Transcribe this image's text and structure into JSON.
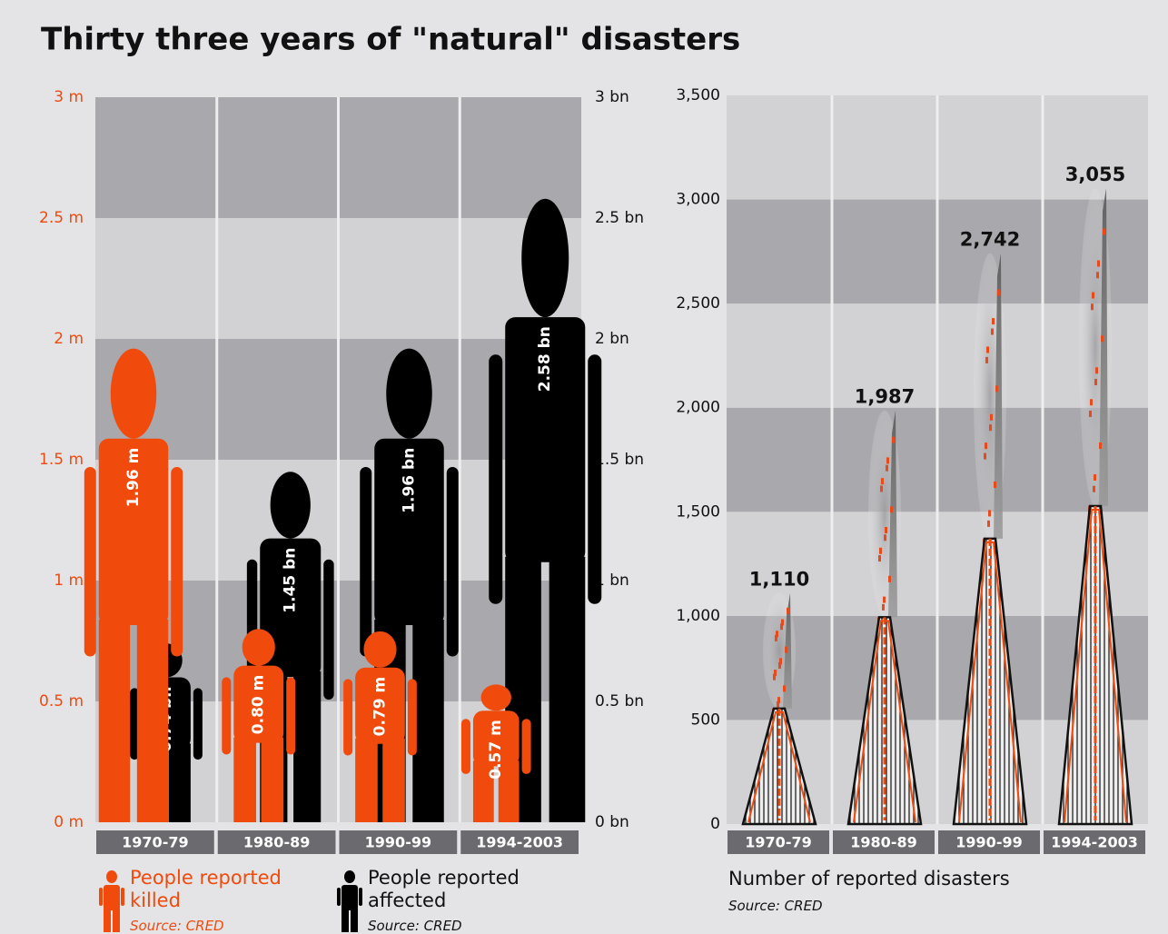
{
  "title": "Thirty three years of \"natural\" disasters",
  "chart_data": [
    {
      "type": "pictogram",
      "categories": [
        "1970-79",
        "1980-89",
        "1990-99",
        "1994-2003"
      ],
      "series": [
        {
          "name": "People reported killed",
          "color": "#f04a0c",
          "values": [
            1.96,
            0.8,
            0.79,
            0.57
          ],
          "value_labels": [
            "1.96 m",
            "0.80 m",
            "0.79 m",
            "0.57 m"
          ],
          "source": "Source: CRED"
        },
        {
          "name": "People reported affected",
          "color": "#000000",
          "values": [
            0.74,
            1.45,
            1.96,
            2.58
          ],
          "value_labels": [
            "0.74 bn",
            "1.45 bn",
            "1.96 bn",
            "2.58 bn"
          ],
          "axis": "y2",
          "source": "Source: CRED"
        }
      ],
      "ylim": [
        0,
        3
      ],
      "yticks": [
        {
          "value": 0,
          "label": "0 m"
        },
        {
          "value": 0.5,
          "label": "0.5 m"
        },
        {
          "value": 1,
          "label": "1 m"
        },
        {
          "value": 1.5,
          "label": "1.5 m"
        },
        {
          "value": 2,
          "label": "2 m"
        },
        {
          "value": 2.5,
          "label": "2.5 m"
        },
        {
          "value": 3,
          "label": "3 m"
        }
      ],
      "y2lim": [
        0,
        3
      ],
      "y2ticks": [
        {
          "value": 0,
          "label": "0 bn"
        },
        {
          "value": 0.5,
          "label": "0.5 bn"
        },
        {
          "value": 1,
          "label": "1 bn"
        },
        {
          "value": 1.5,
          "label": "1.5 bn"
        },
        {
          "value": 2,
          "label": "2 bn"
        },
        {
          "value": 2.5,
          "label": "2.5 bn"
        },
        {
          "value": 3,
          "label": "3 bn"
        }
      ],
      "grid": true
    },
    {
      "type": "volcano",
      "categories": [
        "1970-79",
        "1980-89",
        "1990-99",
        "1994-2003"
      ],
      "values": [
        1110,
        1987,
        2742,
        3055
      ],
      "value_labels": [
        "1,110",
        "1,987",
        "2,742",
        "3,055"
      ],
      "x_label": "Number of reported disasters",
      "source": "Source: CRED",
      "ylim": [
        0,
        3500
      ],
      "yticks": [
        0,
        500,
        {
          "value": 1000,
          "label": "1,000"
        },
        {
          "value": 1500,
          "label": "1,500"
        },
        {
          "value": 2000,
          "label": "2,000"
        },
        {
          "value": 2500,
          "label": "2,500"
        },
        {
          "value": 3000,
          "label": "3,000"
        },
        {
          "value": 3500,
          "label": "3,500"
        }
      ],
      "grid": true
    }
  ]
}
